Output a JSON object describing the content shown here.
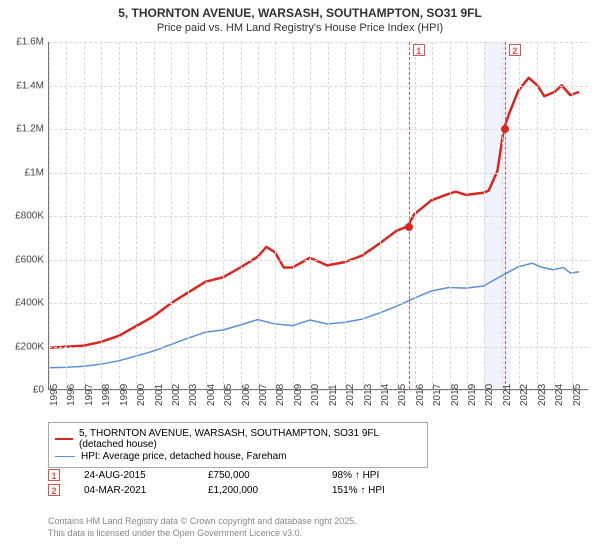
{
  "title": "5, THORNTON AVENUE, WARSASH, SOUTHAMPTON, SO31 9FL",
  "subtitle": "Price paid vs. HM Land Registry's House Price Index (HPI)",
  "chart": {
    "type": "line",
    "background_color": "#ffffff",
    "grid_color": "#ddd8d8",
    "axis_color": "#777777",
    "xlim": [
      1995,
      2026
    ],
    "ylim": [
      0,
      1600000
    ],
    "y_ticks": [
      {
        "v": 0,
        "label": "£0"
      },
      {
        "v": 200000,
        "label": "£200K"
      },
      {
        "v": 400000,
        "label": "£400K"
      },
      {
        "v": 600000,
        "label": "£600K"
      },
      {
        "v": 800000,
        "label": "£800K"
      },
      {
        "v": 1000000,
        "label": "£1M"
      },
      {
        "v": 1200000,
        "label": "£1.2M"
      },
      {
        "v": 1400000,
        "label": "£1.4M"
      },
      {
        "v": 1600000,
        "label": "£1.6M"
      }
    ],
    "x_ticks": [
      1995,
      1996,
      1997,
      1998,
      1999,
      2000,
      2001,
      2002,
      2003,
      2004,
      2005,
      2006,
      2007,
      2008,
      2009,
      2010,
      2011,
      2012,
      2013,
      2014,
      2015,
      2016,
      2017,
      2018,
      2019,
      2020,
      2021,
      2022,
      2023,
      2024,
      2025
    ],
    "event_band": {
      "start": 2020,
      "end": 2021.5,
      "color": "#eff3fb"
    },
    "events": [
      {
        "id": "1",
        "x": 2015.65,
        "color": "#d9534f"
      },
      {
        "id": "2",
        "x": 2021.17,
        "color": "#d9534f"
      }
    ],
    "sale_points": [
      {
        "x": 2015.65,
        "y": 750000,
        "color": "#d9261f"
      },
      {
        "x": 2021.17,
        "y": 1200000,
        "color": "#d9261f"
      }
    ],
    "series": [
      {
        "id": "price_paid",
        "label": "5, THORNTON AVENUE, WARSASH, SOUTHAMPTON, SO31 9FL (detached house)",
        "color": "#d9261f",
        "line_width": 2.5,
        "points": [
          [
            1995,
            190000
          ],
          [
            1996,
            195000
          ],
          [
            1997,
            200000
          ],
          [
            1998,
            217500
          ],
          [
            1999,
            245000
          ],
          [
            2000,
            290000
          ],
          [
            2001,
            335000
          ],
          [
            2002,
            395000
          ],
          [
            2003,
            445000
          ],
          [
            2004,
            495000
          ],
          [
            2005,
            515000
          ],
          [
            2006,
            560000
          ],
          [
            2007,
            610000
          ],
          [
            2007.5,
            655000
          ],
          [
            2008,
            630000
          ],
          [
            2008.5,
            560000
          ],
          [
            2009,
            560000
          ],
          [
            2010,
            605000
          ],
          [
            2011,
            570000
          ],
          [
            2012,
            585000
          ],
          [
            2013,
            615000
          ],
          [
            2014,
            670000
          ],
          [
            2015,
            730000
          ],
          [
            2015.65,
            750000
          ],
          [
            2016,
            805000
          ],
          [
            2017,
            870000
          ],
          [
            2018,
            900000
          ],
          [
            2018.4,
            910000
          ],
          [
            2019,
            895000
          ],
          [
            2020,
            905000
          ],
          [
            2020.3,
            915000
          ],
          [
            2020.8,
            1005000
          ],
          [
            2021.17,
            1200000
          ],
          [
            2021.5,
            1275000
          ],
          [
            2022,
            1375000
          ],
          [
            2022.6,
            1435000
          ],
          [
            2023.1,
            1400000
          ],
          [
            2023.5,
            1350000
          ],
          [
            2024.1,
            1370000
          ],
          [
            2024.5,
            1400000
          ],
          [
            2025,
            1355000
          ],
          [
            2025.5,
            1370000
          ]
        ]
      },
      {
        "id": "hpi",
        "label": "HPI: Average price, detached house, Fareham",
        "color": "#5b8fd6",
        "line_width": 1.5,
        "points": [
          [
            1995,
            98000
          ],
          [
            1996,
            100000
          ],
          [
            1997,
            105000
          ],
          [
            1998,
            115000
          ],
          [
            1999,
            130000
          ],
          [
            2000,
            152000
          ],
          [
            2001,
            175000
          ],
          [
            2002,
            205000
          ],
          [
            2003,
            235000
          ],
          [
            2004,
            262000
          ],
          [
            2005,
            272000
          ],
          [
            2006,
            295000
          ],
          [
            2007,
            320000
          ],
          [
            2008,
            300000
          ],
          [
            2009,
            292000
          ],
          [
            2010,
            318000
          ],
          [
            2011,
            300000
          ],
          [
            2012,
            307000
          ],
          [
            2013,
            322000
          ],
          [
            2014,
            350000
          ],
          [
            2015,
            382000
          ],
          [
            2016,
            418000
          ],
          [
            2017,
            452000
          ],
          [
            2018,
            468000
          ],
          [
            2019,
            465000
          ],
          [
            2020,
            475000
          ],
          [
            2021,
            520000
          ],
          [
            2022,
            563000
          ],
          [
            2022.8,
            580000
          ],
          [
            2023.3,
            563000
          ],
          [
            2024,
            550000
          ],
          [
            2024.6,
            560000
          ],
          [
            2025,
            535000
          ],
          [
            2025.5,
            540000
          ]
        ]
      }
    ]
  },
  "legend": {
    "items": [
      {
        "color": "#d9261f",
        "label": "5, THORNTON AVENUE, WARSASH, SOUTHAMPTON, SO31 9FL (detached house)",
        "width": 2.5
      },
      {
        "color": "#5b8fd6",
        "label": "HPI: Average price, detached house, Fareham",
        "width": 1.5
      }
    ]
  },
  "sales": [
    {
      "badge": "1",
      "date": "24-AUG-2015",
      "price": "£750,000",
      "delta": "98% ↑ HPI"
    },
    {
      "badge": "2",
      "date": "04-MAR-2021",
      "price": "£1,200,000",
      "delta": "151% ↑ HPI"
    }
  ],
  "attribution": {
    "line1": "Contains HM Land Registry data © Crown copyright and database right 2025.",
    "line2": "This data is licensed under the Open Government Licence v3.0."
  }
}
